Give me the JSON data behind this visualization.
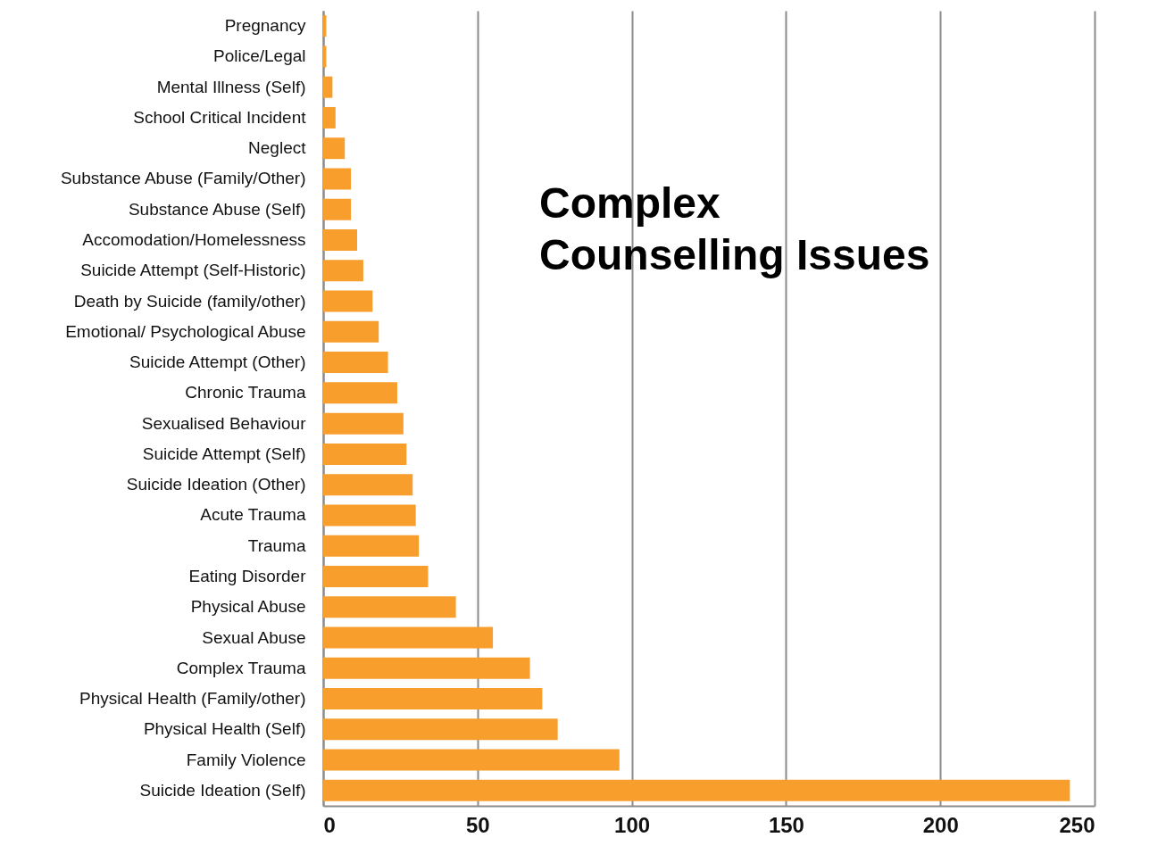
{
  "chart_data": {
    "type": "bar",
    "orientation": "horizontal",
    "title": "Complex Counselling Issues",
    "categories": [
      "Pregnancy",
      "Police/Legal",
      "Mental Illness (Self)",
      "School Critical Incident",
      "Neglect",
      "Substance Abuse (Family/Other)",
      "Substance Abuse (Self)",
      "Accomodation/Homelessness",
      "Suicide Attempt (Self-Historic)",
      "Death by Suicide (family/other)",
      "Emotional/ Psychological Abuse",
      "Suicide Attempt (Other)",
      "Chronic Trauma",
      "Sexualised Behaviour",
      "Suicide Attempt (Self)",
      "Suicide Ideation (Other)",
      "Acute Trauma",
      "Trauma",
      "Eating Disorder",
      "Physical Abuse",
      "Sexual Abuse",
      "Complex Trauma",
      "Physical Health (Family/other)",
      "Physical Health (Self)",
      "Family Violence",
      "Suicide Ideation (Self)"
    ],
    "values": [
      1,
      1,
      3,
      4,
      7,
      9,
      9,
      11,
      13,
      16,
      18,
      21,
      24,
      26,
      27,
      29,
      30,
      31,
      34,
      43,
      55,
      67,
      71,
      76,
      96,
      242
    ],
    "color": "#f89e2d",
    "xlim": [
      0,
      250
    ],
    "xticks": [
      0,
      50,
      100,
      150,
      200,
      250
    ],
    "grid": "x"
  }
}
